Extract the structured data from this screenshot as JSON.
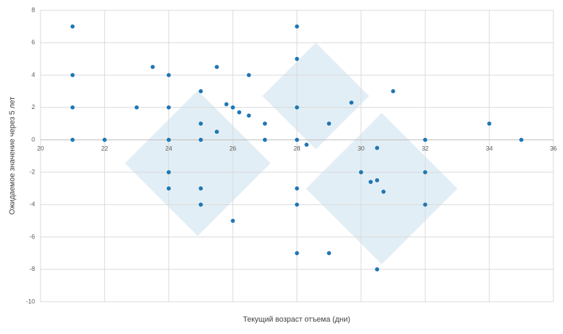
{
  "chart_data": {
    "type": "scatter",
    "x_label": "Текущий возраст отъема (дни)",
    "y_label": "Ожидаемое значение через 5 лет",
    "color": "#1f77b4",
    "xlim": [
      20,
      36
    ],
    "xticks": [
      20,
      22,
      24,
      26,
      28,
      30,
      32,
      34,
      36
    ],
    "ylim": [
      -10,
      8
    ],
    "yticks": [
      -10,
      -8,
      -6,
      -4,
      -2,
      0,
      2,
      4,
      6,
      8
    ],
    "grid": true,
    "x": [
      21,
      21,
      21,
      21,
      22,
      23,
      23.5,
      24,
      24,
      24,
      24,
      24,
      25,
      25,
      25,
      25,
      25,
      25.5,
      25.5,
      25.8,
      26,
      26.2,
      26.5,
      26.5,
      26,
      27,
      27,
      28,
      28,
      28,
      28,
      28.3,
      28,
      28,
      28,
      29,
      29,
      29.7,
      30,
      30.3,
      30.5,
      30.5,
      30.7,
      30.5,
      31,
      32,
      32,
      32,
      34,
      35
    ],
    "values": [
      7,
      4,
      2,
      0,
      0,
      2,
      4.5,
      4,
      2,
      0,
      -2,
      -3,
      3,
      1,
      0,
      -3,
      -4,
      4.5,
      0.5,
      2.2,
      2,
      1.7,
      1.5,
      4,
      -5,
      1,
      0,
      7,
      5,
      2,
      0,
      -0.3,
      -3,
      -4,
      -7,
      1,
      -7,
      2.3,
      -2,
      -2.6,
      -2.5,
      -0.5,
      -3.2,
      -8,
      3,
      0,
      -2,
      -4,
      1,
      0
    ]
  }
}
